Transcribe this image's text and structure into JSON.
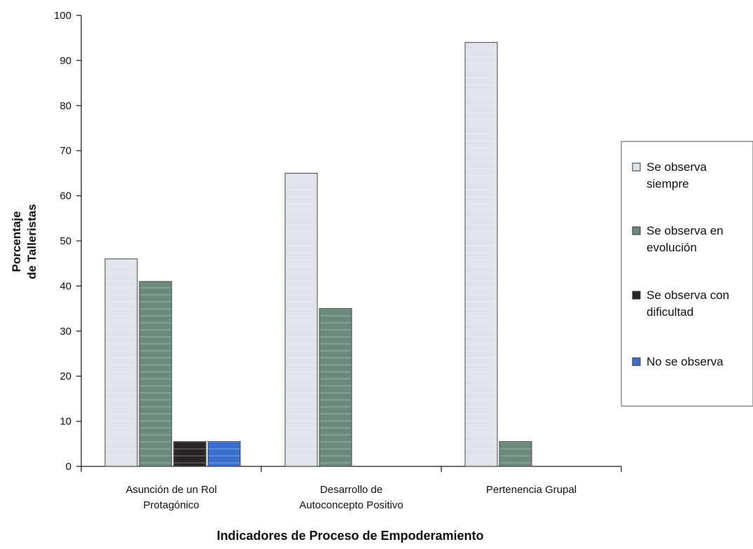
{
  "chart_data": {
    "type": "bar",
    "title": "",
    "xlabel": "Indicadores de Proceso de Empoderamiento",
    "ylabel": [
      "Porcentaje",
      "de Talleristas"
    ],
    "ylim": [
      0,
      100
    ],
    "yticks": [
      0,
      10,
      20,
      30,
      40,
      50,
      60,
      70,
      80,
      90,
      100
    ],
    "grid": false,
    "legend_position": "right",
    "categories": [
      [
        "Asunción de un Rol",
        "Protagónico"
      ],
      [
        "Desarrollo de",
        "Autoconcepto Positivo"
      ],
      [
        "Pertenencia Grupal"
      ]
    ],
    "series": [
      {
        "name": [
          "Se observa",
          "siempre"
        ],
        "color": "#dfe4ea",
        "values": [
          46,
          65,
          94
        ]
      },
      {
        "name": [
          "Se observa en",
          "evolución"
        ],
        "color": "#6b8a7c",
        "values": [
          41,
          35,
          5.5
        ]
      },
      {
        "name": [
          "Se observa con",
          "dificultad"
        ],
        "color": "#2a2425",
        "values": [
          5.5,
          0,
          0
        ]
      },
      {
        "name": [
          "No se observa"
        ],
        "color": "#3a6fd0",
        "values": [
          5.5,
          0,
          0
        ]
      }
    ]
  }
}
